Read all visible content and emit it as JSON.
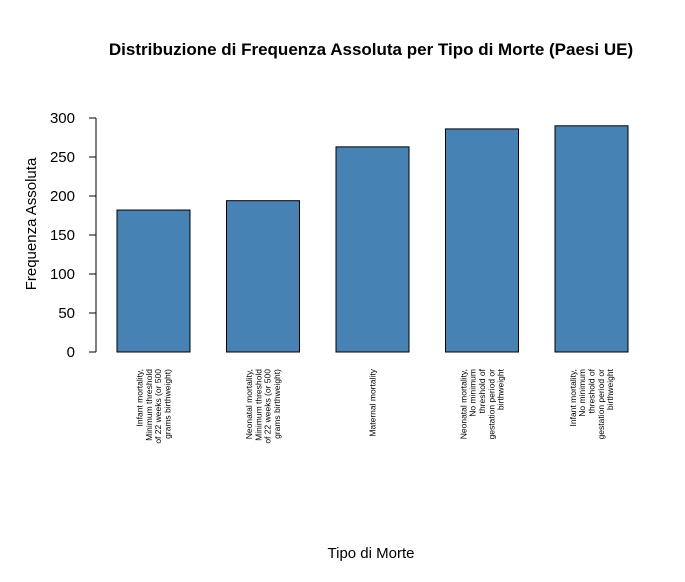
{
  "chart_data": {
    "type": "bar",
    "title": "Distribuzione di Frequenza Assoluta per Tipo di Morte (Paesi UE)",
    "xlabel": "Tipo di Morte",
    "ylabel": "Frequenza Assoluta",
    "ylim": [
      0,
      300
    ],
    "yticks": [
      "0",
      "50",
      "100",
      "150",
      "200",
      "250",
      "300"
    ],
    "grid": false,
    "bar_color": "#4682B4",
    "categories": [
      "Infant mortality, Minimum threshold of 22 weeks (or 500 grams birthweight)",
      "Neonatal mortality, Minimum threshold of 22 weeks (or 500 grams birthweight)",
      "Maternal mortality",
      "Neonatal mortality, No minimum threshold of gestation period or birthweight",
      "Infant mortality, No minimum threshold of gestation period or birthweight"
    ],
    "category_lines": [
      [
        "Infant mortality,",
        "Minimum threshold",
        "of 22 weeks (or 500",
        "grams birthweight)"
      ],
      [
        "Neonatal mortality,",
        "Minimum threshold",
        "of 22 weeks (or 500",
        "grams birthweight)"
      ],
      [
        "Maternal mortality"
      ],
      [
        "Neonatal mortality,",
        "No minimum",
        "threshold of",
        "gestation period or",
        "birthweight"
      ],
      [
        "Infant mortality,",
        "No minimum",
        "threshold of",
        "gestation period or",
        "birthweight"
      ]
    ],
    "values": [
      182,
      194,
      263,
      286,
      290
    ]
  }
}
